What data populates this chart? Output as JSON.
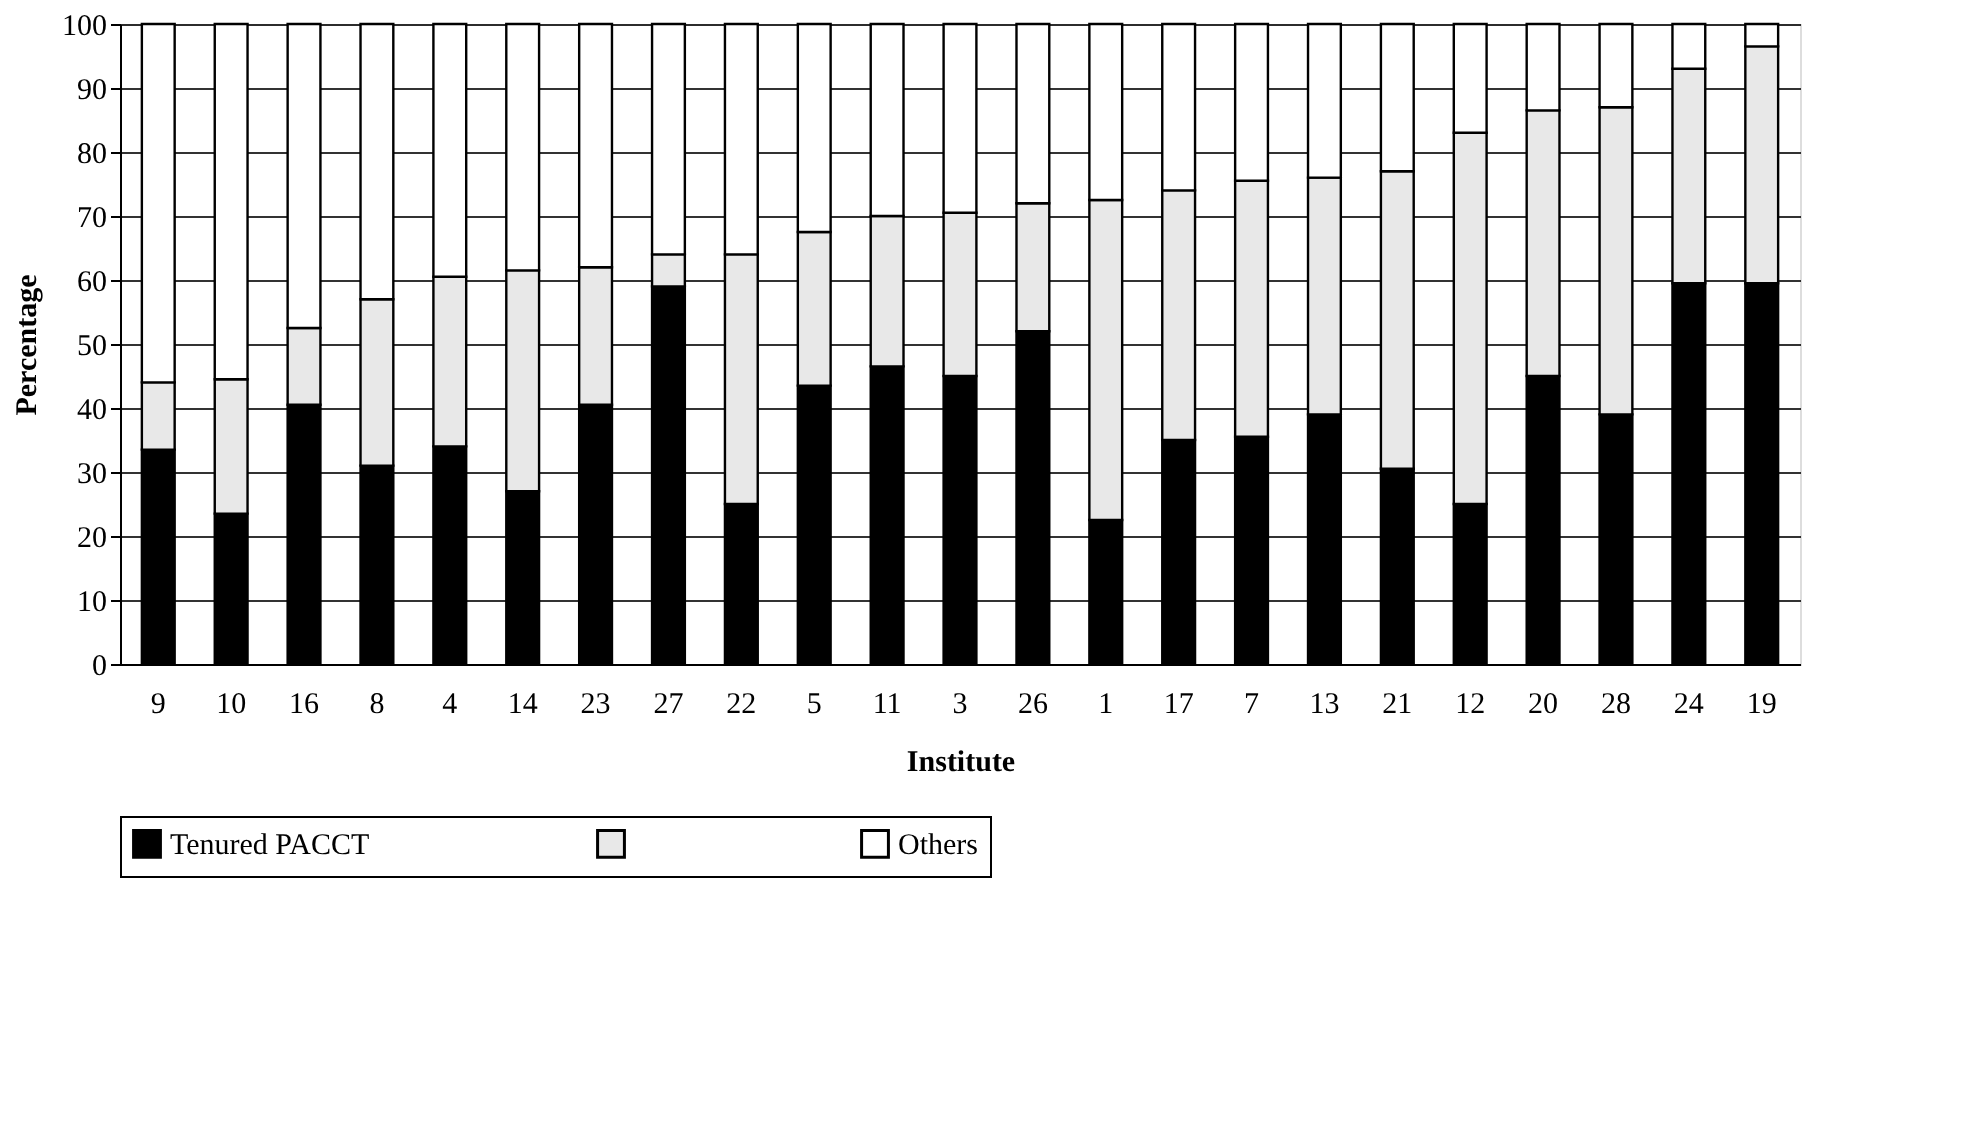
{
  "chart_data": {
    "type": "bar",
    "stacked": true,
    "xlabel": "Institute",
    "ylabel": "Percentage",
    "categories": [
      "9",
      "10",
      "16",
      "8",
      "4",
      "14",
      "23",
      "27",
      "22",
      "5",
      "11",
      "3",
      "26",
      "1",
      "17",
      "7",
      "13",
      "21",
      "12",
      "20",
      "28",
      "24",
      "19"
    ],
    "series": [
      {
        "name": "Tenured PACCT",
        "color": "#000000",
        "values": [
          33.5,
          23.5,
          40.5,
          31,
          34,
          27,
          40.5,
          59,
          25,
          43.5,
          46.5,
          45,
          52,
          22.5,
          35,
          35.5,
          39,
          30.5,
          25,
          45,
          39,
          59.5,
          59.5
        ]
      },
      {
        "color": "#e8e8e8",
        "values": [
          10.5,
          21,
          12,
          26,
          26.5,
          34.5,
          21.5,
          5,
          39,
          24,
          23.5,
          25.5,
          20,
          50,
          39,
          40,
          37,
          46.5,
          58,
          41.5,
          48,
          33.5,
          37
        ]
      },
      {
        "name": "Others",
        "color": "#ffffff",
        "values": [
          56,
          55.5,
          47.5,
          43,
          39.5,
          38.5,
          38,
          36,
          36,
          32.5,
          30,
          29.5,
          28,
          27.5,
          26,
          24.5,
          24,
          23,
          17,
          13.5,
          13,
          7,
          3.5
        ]
      }
    ],
    "ylim": [
      0,
      100
    ],
    "yticks": [
      0,
      10,
      20,
      30,
      40,
      50,
      60,
      70,
      80,
      90,
      100
    ],
    "grid": "y",
    "legend": "bottom"
  }
}
